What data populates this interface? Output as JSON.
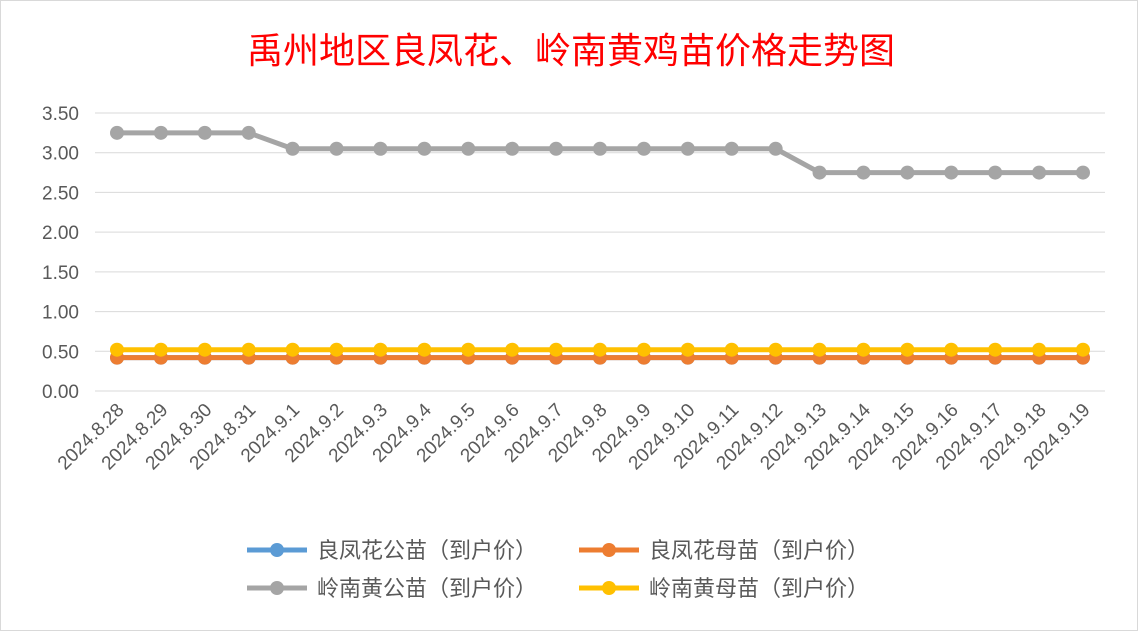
{
  "chart_data": {
    "type": "line",
    "title": "禹州地区良凤花、岭南黄鸡苗价格走势图",
    "title_color": "#ff0000",
    "categories": [
      "2024.8.28",
      "2024.8.29",
      "2024.8.30",
      "2024.8.31",
      "2024.9.1",
      "2024.9.2",
      "2024.9.3",
      "2024.9.4",
      "2024.9.5",
      "2024.9.6",
      "2024.9.7",
      "2024.9.8",
      "2024.9.9",
      "2024.9.10",
      "2024.9.11",
      "2024.9.12",
      "2024.9.13",
      "2024.9.14",
      "2024.9.15",
      "2024.9.16",
      "2024.9.17",
      "2024.9.18",
      "2024.9.19"
    ],
    "ylim": [
      0,
      3.5
    ],
    "yticks": [
      "0.00",
      "0.50",
      "1.00",
      "1.50",
      "2.00",
      "2.50",
      "3.00",
      "3.50"
    ],
    "grid": true,
    "legend_position": "bottom",
    "series": [
      {
        "name": "良凤花公苗（到户价）",
        "color": "#5b9bd5",
        "values": [
          0.42,
          0.42,
          0.42,
          0.42,
          0.42,
          0.42,
          0.42,
          0.42,
          0.42,
          0.42,
          0.42,
          0.42,
          0.42,
          0.42,
          0.42,
          0.42,
          0.42,
          0.42,
          0.42,
          0.42,
          0.42,
          0.42,
          0.42
        ]
      },
      {
        "name": "良凤花母苗（到户价）",
        "color": "#ed7d31",
        "values": [
          0.42,
          0.42,
          0.42,
          0.42,
          0.42,
          0.42,
          0.42,
          0.42,
          0.42,
          0.42,
          0.42,
          0.42,
          0.42,
          0.42,
          0.42,
          0.42,
          0.42,
          0.42,
          0.42,
          0.42,
          0.42,
          0.42,
          0.42
        ]
      },
      {
        "name": "岭南黄公苗（到户价）",
        "color": "#a5a5a5",
        "values": [
          3.25,
          3.25,
          3.25,
          3.25,
          3.05,
          3.05,
          3.05,
          3.05,
          3.05,
          3.05,
          3.05,
          3.05,
          3.05,
          3.05,
          3.05,
          3.05,
          2.75,
          2.75,
          2.75,
          2.75,
          2.75,
          2.75,
          2.75
        ]
      },
      {
        "name": "岭南黄母苗（到户价）",
        "color": "#ffc000",
        "values": [
          0.52,
          0.52,
          0.52,
          0.52,
          0.52,
          0.52,
          0.52,
          0.52,
          0.52,
          0.52,
          0.52,
          0.52,
          0.52,
          0.52,
          0.52,
          0.52,
          0.52,
          0.52,
          0.52,
          0.52,
          0.52,
          0.52,
          0.52
        ]
      }
    ],
    "grid_color": "#d9d9d9"
  }
}
